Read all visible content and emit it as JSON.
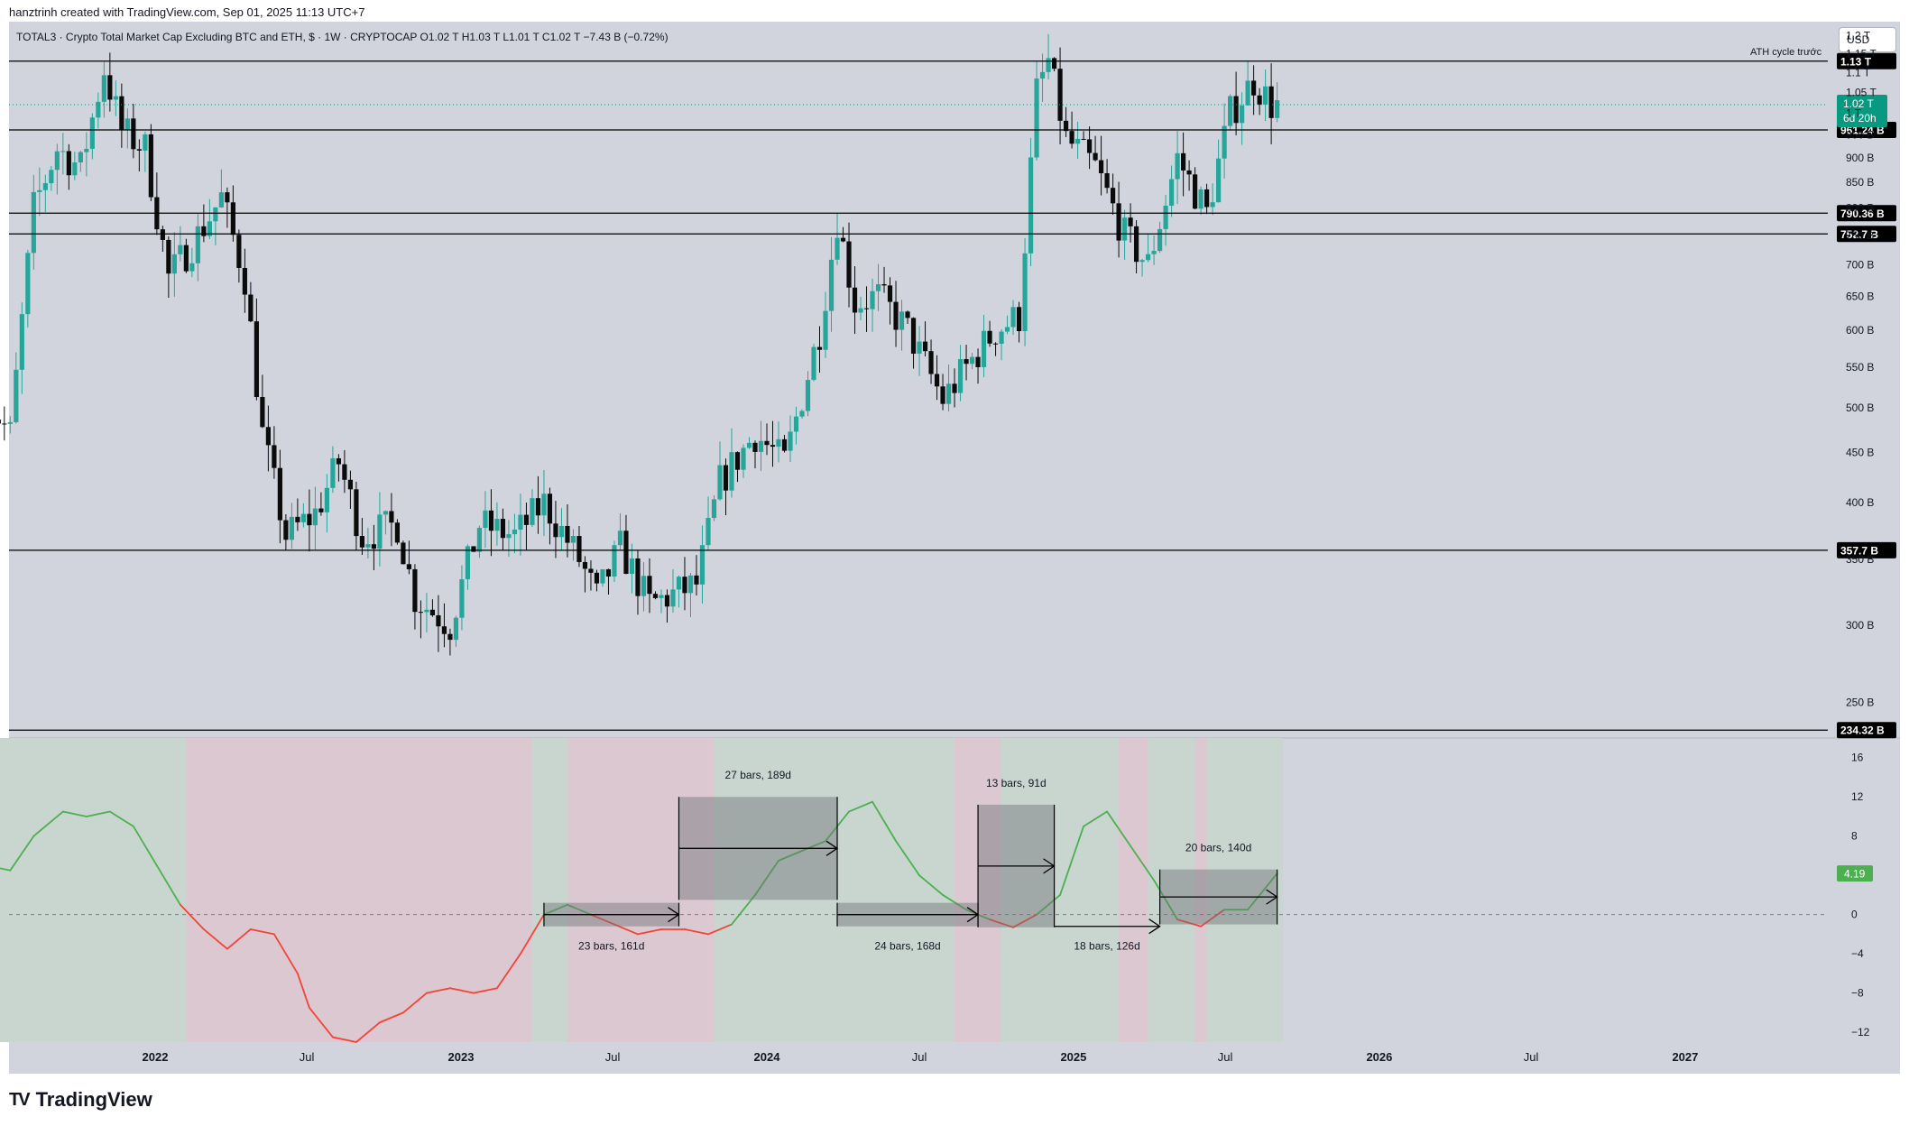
{
  "header": {
    "credit": "hanztrinh created with TradingView.com, Sep 01, 2025 11:13 UTC+7",
    "legend": "TOTAL3 · Crypto Total Market Cap Excluding BTC and ETH, $ · 1W · CRYPTOCAP  O1.02 T  H1.03 T  L1.01 T  C1.02 T  −7.43 B (−0.72%)"
  },
  "currency_button": "USD",
  "brand": {
    "name": "TradingView",
    "mark": "TV"
  },
  "colors": {
    "up": "#26a69a",
    "down": "#0b0b0b",
    "osc_up": "#4caf50",
    "osc_down": "#f44336",
    "zone_green": "#c8d6cf",
    "zone_red": "#dcc8d1",
    "price_tag": "#089981"
  },
  "chart_data": [
    {
      "type": "candlestick",
      "title": "TOTAL3 · Crypto Total Market Cap Excluding BTC and ETH, $ · 1W · CRYPTOCAP",
      "scale": "log",
      "ylim": [
        230,
        1240
      ],
      "y_unit": "B",
      "y_ticks": [
        250,
        300,
        350,
        400,
        450,
        500,
        550,
        600,
        650,
        700,
        750,
        800,
        850,
        900,
        950,
        1000,
        1050,
        1100,
        1150,
        1200
      ],
      "y_tick_labels": [
        "250 B",
        "300 B",
        "350 B",
        "400 B",
        "450 B",
        "500 B",
        "550 B",
        "600 B",
        "650 B",
        "700 B",
        "750 B",
        "800 B",
        "850 B",
        "900 B",
        "950 B",
        "1 T",
        "1.05 T",
        "1.1 T",
        "1.15 T",
        "1.2 T"
      ],
      "x_labels": [
        {
          "label": "2022",
          "x": "2022-01-01"
        },
        {
          "label": "Jul",
          "x": "2022-07-01"
        },
        {
          "label": "2023",
          "x": "2023-01-01"
        },
        {
          "label": "Jul",
          "x": "2023-07-01"
        },
        {
          "label": "2024",
          "x": "2024-01-01"
        },
        {
          "label": "Jul",
          "x": "2024-07-01"
        },
        {
          "label": "2025",
          "x": "2025-01-01"
        },
        {
          "label": "Jul",
          "x": "2025-07-01"
        },
        {
          "label": "2026",
          "x": "2026-01-01"
        },
        {
          "label": "Jul",
          "x": "2026-07-01"
        },
        {
          "label": "2027",
          "x": "2027-01-01"
        }
      ],
      "levels": [
        {
          "value": 1130,
          "label": "1.13 T",
          "note": "ATH cycle trước"
        },
        {
          "value": 961.24,
          "label": "961.24 B"
        },
        {
          "value": 790.36,
          "label": "790.36 B"
        },
        {
          "value": 752.7,
          "label": "752.7 B"
        },
        {
          "value": 357.7,
          "label": "357.7 B"
        },
        {
          "value": 234.32,
          "label": "234.32 B"
        }
      ],
      "last_price": {
        "value": 1020,
        "label": "1.02 T",
        "countdown": "6d 20h"
      },
      "price_path": [
        [
          "2021-06-14",
          520
        ],
        [
          "2021-07-19",
          470
        ],
        [
          "2021-08-16",
          800
        ],
        [
          "2021-09-13",
          920
        ],
        [
          "2021-10-11",
          880
        ],
        [
          "2021-11-08",
          1110
        ],
        [
          "2021-11-29",
          960
        ],
        [
          "2021-12-27",
          920
        ],
        [
          "2022-01-24",
          680
        ],
        [
          "2022-02-28",
          750
        ],
        [
          "2022-03-28",
          820
        ],
        [
          "2022-04-25",
          680
        ],
        [
          "2022-05-16",
          470
        ],
        [
          "2022-06-13",
          370
        ],
        [
          "2022-07-18",
          390
        ],
        [
          "2022-08-15",
          440
        ],
        [
          "2022-09-12",
          370
        ],
        [
          "2022-10-24",
          380
        ],
        [
          "2022-11-14",
          320
        ],
        [
          "2022-12-26",
          300
        ],
        [
          "2023-01-30",
          380
        ],
        [
          "2023-03-13",
          370
        ],
        [
          "2023-04-17",
          400
        ],
        [
          "2023-05-29",
          350
        ],
        [
          "2023-06-19",
          320
        ],
        [
          "2023-07-17",
          360
        ],
        [
          "2023-08-21",
          315
        ],
        [
          "2023-10-16",
          330
        ],
        [
          "2023-11-13",
          420
        ],
        [
          "2023-12-25",
          470
        ],
        [
          "2024-01-29",
          440
        ],
        [
          "2024-03-11",
          600
        ],
        [
          "2024-04-01",
          780
        ],
        [
          "2024-04-22",
          640
        ],
        [
          "2024-05-20",
          650
        ],
        [
          "2024-06-24",
          600
        ],
        [
          "2024-08-05",
          510
        ],
        [
          "2024-09-09",
          560
        ],
        [
          "2024-10-07",
          600
        ],
        [
          "2024-11-04",
          620
        ],
        [
          "2024-11-25",
          1050
        ],
        [
          "2024-12-09",
          1130
        ],
        [
          "2024-12-30",
          940
        ],
        [
          "2025-02-03",
          880
        ],
        [
          "2025-03-10",
          750
        ],
        [
          "2025-04-07",
          700
        ],
        [
          "2025-05-12",
          900
        ],
        [
          "2025-06-16",
          790
        ],
        [
          "2025-07-14",
          1000
        ],
        [
          "2025-08-11",
          1080
        ],
        [
          "2025-09-01",
          1020
        ]
      ]
    },
    {
      "type": "line",
      "title": "",
      "ylim": [
        -13,
        18
      ],
      "y_ticks": [
        16,
        12,
        8,
        4,
        0,
        -4,
        -8,
        -12
      ],
      "y_tick_labels": [
        "16",
        "12",
        "8",
        "4",
        "0",
        "−4",
        "−8",
        "−12"
      ],
      "last_value": {
        "value": 4.19,
        "label": "4.19"
      },
      "x": [
        "2021-06-14",
        "2021-07-12",
        "2021-08-09",
        "2021-09-13",
        "2021-10-11",
        "2021-11-08",
        "2021-12-06",
        "2022-01-03",
        "2022-01-31",
        "2022-02-28",
        "2022-03-28",
        "2022-04-25",
        "2022-05-23",
        "2022-06-20",
        "2022-07-04",
        "2022-08-01",
        "2022-08-29",
        "2022-09-26",
        "2022-10-24",
        "2022-11-21",
        "2022-12-19",
        "2023-01-16",
        "2023-02-13",
        "2023-03-13",
        "2023-04-10",
        "2023-05-08",
        "2023-06-05",
        "2023-07-03",
        "2023-07-31",
        "2023-08-28",
        "2023-09-25",
        "2023-10-23",
        "2023-11-20",
        "2023-12-18",
        "2024-01-15",
        "2024-02-12",
        "2024-03-11",
        "2024-04-08",
        "2024-05-06",
        "2024-06-03",
        "2024-07-01",
        "2024-07-29",
        "2024-08-26",
        "2024-09-23",
        "2024-10-21",
        "2024-11-18",
        "2024-12-16",
        "2025-01-13",
        "2025-02-10",
        "2025-03-10",
        "2025-04-07",
        "2025-05-05",
        "2025-06-02",
        "2025-06-30",
        "2025-07-28",
        "2025-09-01"
      ],
      "values": [
        5,
        4.5,
        8,
        10.5,
        10,
        10.5,
        9,
        5,
        1,
        -1.5,
        -3.5,
        -1.5,
        -2,
        -6,
        -9.5,
        -12.5,
        -13,
        -11,
        -10,
        -8,
        -7.5,
        -8,
        -7.5,
        -4,
        0,
        1,
        0,
        -1,
        -2,
        -1.5,
        -1.5,
        -2,
        -1,
        2,
        5.5,
        6.5,
        7.5,
        10.5,
        11.5,
        7.5,
        4,
        2,
        0.5,
        -0.5,
        -1.3,
        0,
        2,
        9,
        10.5,
        7,
        3.5,
        -0.5,
        -1.2,
        0.5,
        0.5,
        4.19
      ],
      "measures": [
        {
          "label": "23 bars, 161d",
          "from": "2023-04-10",
          "to": "2023-09-18",
          "v_from": 1.2,
          "v_to": -1.2
        },
        {
          "label": "27 bars, 189d",
          "from": "2023-09-18",
          "to": "2024-03-25",
          "v_from": 1.5,
          "v_to": 12
        },
        {
          "label": "24 bars, 168d",
          "from": "2024-03-25",
          "to": "2024-09-09",
          "v_from": 1.2,
          "v_to": -1.2
        },
        {
          "label": "13 bars, 91d",
          "from": "2024-09-09",
          "to": "2024-12-09",
          "v_from": -1.3,
          "v_to": 11.2
        },
        {
          "label": "18 bars, 126d",
          "from": "2024-12-09",
          "to": "2025-04-14",
          "v_from": -1.2,
          "v_to": -1.2
        },
        {
          "label": "20 bars, 140d",
          "from": "2025-04-14",
          "to": "2025-09-01",
          "v_from": -1,
          "v_to": 4.6
        }
      ],
      "zones": [
        {
          "from": "2021-06-14",
          "to": "2022-02-07",
          "color": "green"
        },
        {
          "from": "2022-02-07",
          "to": "2023-03-27",
          "color": "red"
        },
        {
          "from": "2023-03-27",
          "to": "2023-05-08",
          "color": "green"
        },
        {
          "from": "2023-05-08",
          "to": "2023-10-30",
          "color": "red"
        },
        {
          "from": "2023-10-30",
          "to": "2024-08-12",
          "color": "green"
        },
        {
          "from": "2024-08-12",
          "to": "2024-10-07",
          "color": "red"
        },
        {
          "from": "2024-10-07",
          "to": "2025-02-24",
          "color": "green"
        },
        {
          "from": "2025-02-24",
          "to": "2025-03-31",
          "color": "red"
        },
        {
          "from": "2025-03-31",
          "to": "2025-05-26",
          "color": "green"
        },
        {
          "from": "2025-05-26",
          "to": "2025-06-09",
          "color": "red"
        },
        {
          "from": "2025-06-09",
          "to": "2025-09-08",
          "color": "green"
        }
      ]
    }
  ]
}
